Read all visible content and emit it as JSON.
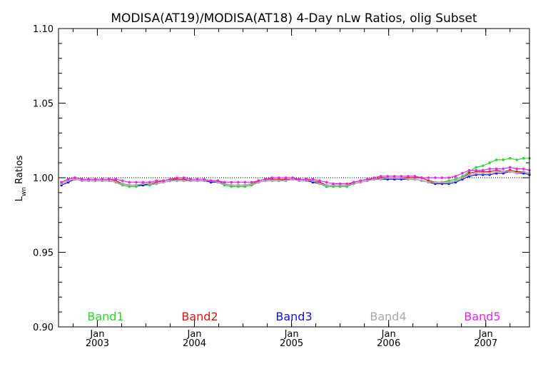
{
  "chart_data": {
    "type": "line",
    "title": "MODISA(AT19)/MODISA(AT18) 4-Day nLw Ratios, olig Subset",
    "ylabel_main": "L",
    "ylabel_sub": "wn",
    "ylabel_rest": " Ratios",
    "ylim": [
      0.9,
      1.1
    ],
    "xlim": [
      2002.6,
      2007.45
    ],
    "y_ticks": [
      {
        "value": 0.9,
        "label": "0.90"
      },
      {
        "value": 0.95,
        "label": "0.95"
      },
      {
        "value": 1.0,
        "label": "1.00"
      },
      {
        "value": 1.05,
        "label": "1.05"
      },
      {
        "value": 1.1,
        "label": "1.10"
      }
    ],
    "y_minor_step": 0.01,
    "x_ticks": [
      {
        "value": 2003.0,
        "month": "Jan",
        "year": "2003"
      },
      {
        "value": 2004.0,
        "month": "Jan",
        "year": "2004"
      },
      {
        "value": 2005.0,
        "month": "Jan",
        "year": "2005"
      },
      {
        "value": 2006.0,
        "month": "Jan",
        "year": "2006"
      },
      {
        "value": 2007.0,
        "month": "Jan",
        "year": "2007"
      }
    ],
    "x_minor_step": 0.25,
    "reference_lines": [
      {
        "y": 1.0,
        "style": "dotted",
        "color": "#000000"
      }
    ],
    "x": [
      2002.63,
      2002.7,
      2002.77,
      2002.84,
      2002.91,
      2002.98,
      2003.05,
      2003.12,
      2003.19,
      2003.26,
      2003.33,
      2003.4,
      2003.47,
      2003.54,
      2003.61,
      2003.68,
      2003.75,
      2003.82,
      2003.89,
      2003.96,
      2004.03,
      2004.1,
      2004.17,
      2004.24,
      2004.31,
      2004.38,
      2004.45,
      2004.52,
      2004.59,
      2004.66,
      2004.73,
      2004.8,
      2004.87,
      2004.94,
      2005.01,
      2005.08,
      2005.15,
      2005.22,
      2005.29,
      2005.36,
      2005.43,
      2005.5,
      2005.57,
      2005.64,
      2005.71,
      2005.78,
      2005.85,
      2005.92,
      2005.99,
      2006.06,
      2006.13,
      2006.2,
      2006.27,
      2006.34,
      2006.41,
      2006.48,
      2006.55,
      2006.62,
      2006.69,
      2006.76,
      2006.83,
      2006.9,
      2006.97,
      2007.04,
      2007.11,
      2007.18,
      2007.25,
      2007.32,
      2007.39,
      2007.45
    ],
    "series": [
      {
        "name": "Band1",
        "color": "#22dd22",
        "values": [
          0.996,
          0.998,
          0.999,
          0.998,
          0.998,
          0.998,
          0.998,
          0.998,
          0.997,
          0.995,
          0.994,
          0.994,
          0.995,
          0.995,
          0.996,
          0.997,
          0.998,
          0.999,
          0.999,
          0.998,
          0.998,
          0.998,
          0.998,
          0.997,
          0.995,
          0.994,
          0.994,
          0.994,
          0.995,
          0.997,
          0.998,
          0.998,
          0.998,
          0.999,
          0.999,
          0.998,
          0.998,
          0.998,
          0.996,
          0.994,
          0.994,
          0.994,
          0.994,
          0.996,
          0.997,
          0.998,
          0.999,
          1.0,
          1.0,
          1.0,
          1.0,
          1.0,
          1.0,
          1.0,
          0.998,
          0.997,
          0.997,
          0.998,
          0.999,
          1.001,
          1.004,
          1.007,
          1.008,
          1.01,
          1.012,
          1.012,
          1.013,
          1.012,
          1.013,
          1.013
        ]
      },
      {
        "name": "Band2",
        "color": "#dd1111",
        "values": [
          0.997,
          0.999,
          1.0,
          0.999,
          0.999,
          0.999,
          0.999,
          0.999,
          0.998,
          0.996,
          0.995,
          0.995,
          0.996,
          0.996,
          0.997,
          0.998,
          0.999,
          0.999,
          0.999,
          0.998,
          0.998,
          0.998,
          0.998,
          0.998,
          0.996,
          0.995,
          0.995,
          0.995,
          0.996,
          0.998,
          0.999,
          0.999,
          0.999,
          0.999,
          0.999,
          0.999,
          0.999,
          0.998,
          0.997,
          0.995,
          0.995,
          0.995,
          0.995,
          0.997,
          0.998,
          0.999,
          0.999,
          1.0,
          1.0,
          1.0,
          1.0,
          1.0,
          1.0,
          1.0,
          0.998,
          0.997,
          0.997,
          0.997,
          0.998,
          1.0,
          1.003,
          1.004,
          1.004,
          1.004,
          1.005,
          1.004,
          1.005,
          1.004,
          1.004,
          1.003
        ]
      },
      {
        "name": "Band3",
        "color": "#1111dd",
        "values": [
          0.995,
          0.997,
          0.999,
          0.998,
          0.998,
          0.998,
          0.998,
          0.998,
          0.997,
          0.996,
          0.995,
          0.995,
          0.995,
          0.996,
          0.996,
          0.997,
          0.998,
          0.998,
          0.998,
          0.998,
          0.998,
          0.998,
          0.997,
          0.997,
          0.996,
          0.995,
          0.995,
          0.995,
          0.996,
          0.997,
          0.998,
          0.998,
          0.998,
          0.998,
          0.999,
          0.998,
          0.998,
          0.997,
          0.996,
          0.995,
          0.995,
          0.995,
          0.995,
          0.996,
          0.997,
          0.998,
          0.999,
          0.999,
          0.999,
          0.999,
          0.999,
          0.999,
          0.999,
          0.998,
          0.997,
          0.996,
          0.996,
          0.996,
          0.997,
          0.999,
          1.001,
          1.002,
          1.002,
          1.002,
          1.003,
          1.003,
          1.004,
          1.003,
          1.003,
          1.002
        ]
      },
      {
        "name": "Band4",
        "color": "#aaaaaa",
        "values": [
          0.996,
          0.998,
          0.999,
          0.998,
          0.998,
          0.998,
          0.998,
          0.998,
          0.997,
          0.996,
          0.995,
          0.995,
          0.996,
          0.996,
          0.996,
          0.997,
          0.998,
          0.998,
          0.998,
          0.998,
          0.998,
          0.998,
          0.998,
          0.997,
          0.996,
          0.995,
          0.995,
          0.995,
          0.996,
          0.997,
          0.998,
          0.998,
          0.998,
          0.998,
          0.999,
          0.998,
          0.998,
          0.998,
          0.996,
          0.995,
          0.995,
          0.995,
          0.995,
          0.996,
          0.997,
          0.998,
          0.999,
          0.999,
          1.0,
          1.0,
          1.0,
          0.999,
          0.999,
          0.998,
          0.997,
          0.997,
          0.997,
          0.997,
          0.998,
          1.0,
          1.002,
          1.003,
          1.003,
          1.003,
          1.004,
          1.004,
          1.004,
          1.003,
          1.004,
          1.003
        ]
      },
      {
        "name": "Band5",
        "color": "#ee22ee",
        "values": [
          0.997,
          0.999,
          1.0,
          0.999,
          0.999,
          0.999,
          0.999,
          0.999,
          0.999,
          0.998,
          0.997,
          0.997,
          0.997,
          0.997,
          0.998,
          0.998,
          0.999,
          1.0,
          1.0,
          0.999,
          0.999,
          0.999,
          0.998,
          0.998,
          0.997,
          0.997,
          0.997,
          0.997,
          0.997,
          0.998,
          0.999,
          1.0,
          1.0,
          1.0,
          1.0,
          0.999,
          0.999,
          0.999,
          0.998,
          0.997,
          0.996,
          0.996,
          0.996,
          0.997,
          0.998,
          0.999,
          1.0,
          1.001,
          1.001,
          1.001,
          1.001,
          1.001,
          1.001,
          1.0,
          1.0,
          1.0,
          1.0,
          1.0,
          1.001,
          1.003,
          1.005,
          1.005,
          1.005,
          1.006,
          1.006,
          1.006,
          1.007,
          1.006,
          1.006,
          1.005
        ]
      }
    ]
  }
}
